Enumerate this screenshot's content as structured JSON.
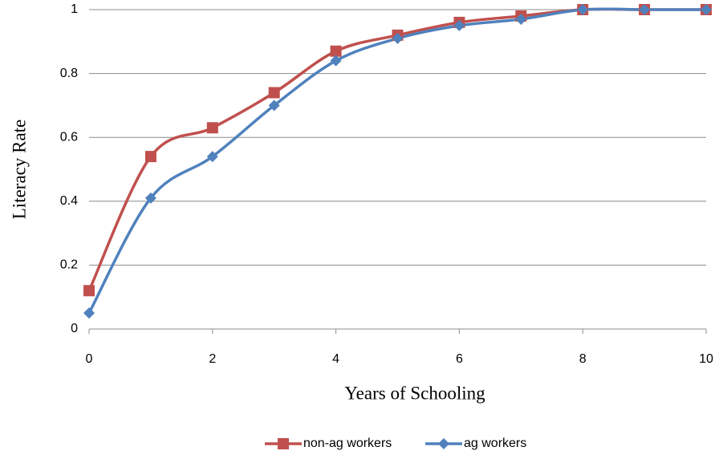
{
  "chart_data": {
    "type": "line",
    "x_label": "Years of Schooling",
    "y_label": "Literacy Rate",
    "x": [
      0,
      1,
      2,
      3,
      4,
      5,
      6,
      7,
      8,
      9,
      10
    ],
    "series": [
      {
        "name": "non-ag workers",
        "color": "#c0504d",
        "marker": "square",
        "values": [
          0.12,
          0.54,
          0.63,
          0.74,
          0.87,
          0.92,
          0.96,
          0.98,
          1,
          1,
          1
        ]
      },
      {
        "name": "ag workers",
        "color": "#4f81bd",
        "marker": "diamond",
        "values": [
          0.05,
          0.41,
          0.54,
          0.7,
          0.84,
          0.91,
          0.95,
          0.97,
          1,
          1,
          1
        ]
      }
    ],
    "xlim": [
      0,
      10
    ],
    "xticks": [
      0,
      2,
      4,
      6,
      8,
      10
    ],
    "ylim": [
      0,
      1
    ],
    "yticks": [
      0,
      0.2,
      0.4,
      0.6,
      0.8,
      1
    ],
    "grid": true,
    "legend": "bottom",
    "smooth": true
  }
}
